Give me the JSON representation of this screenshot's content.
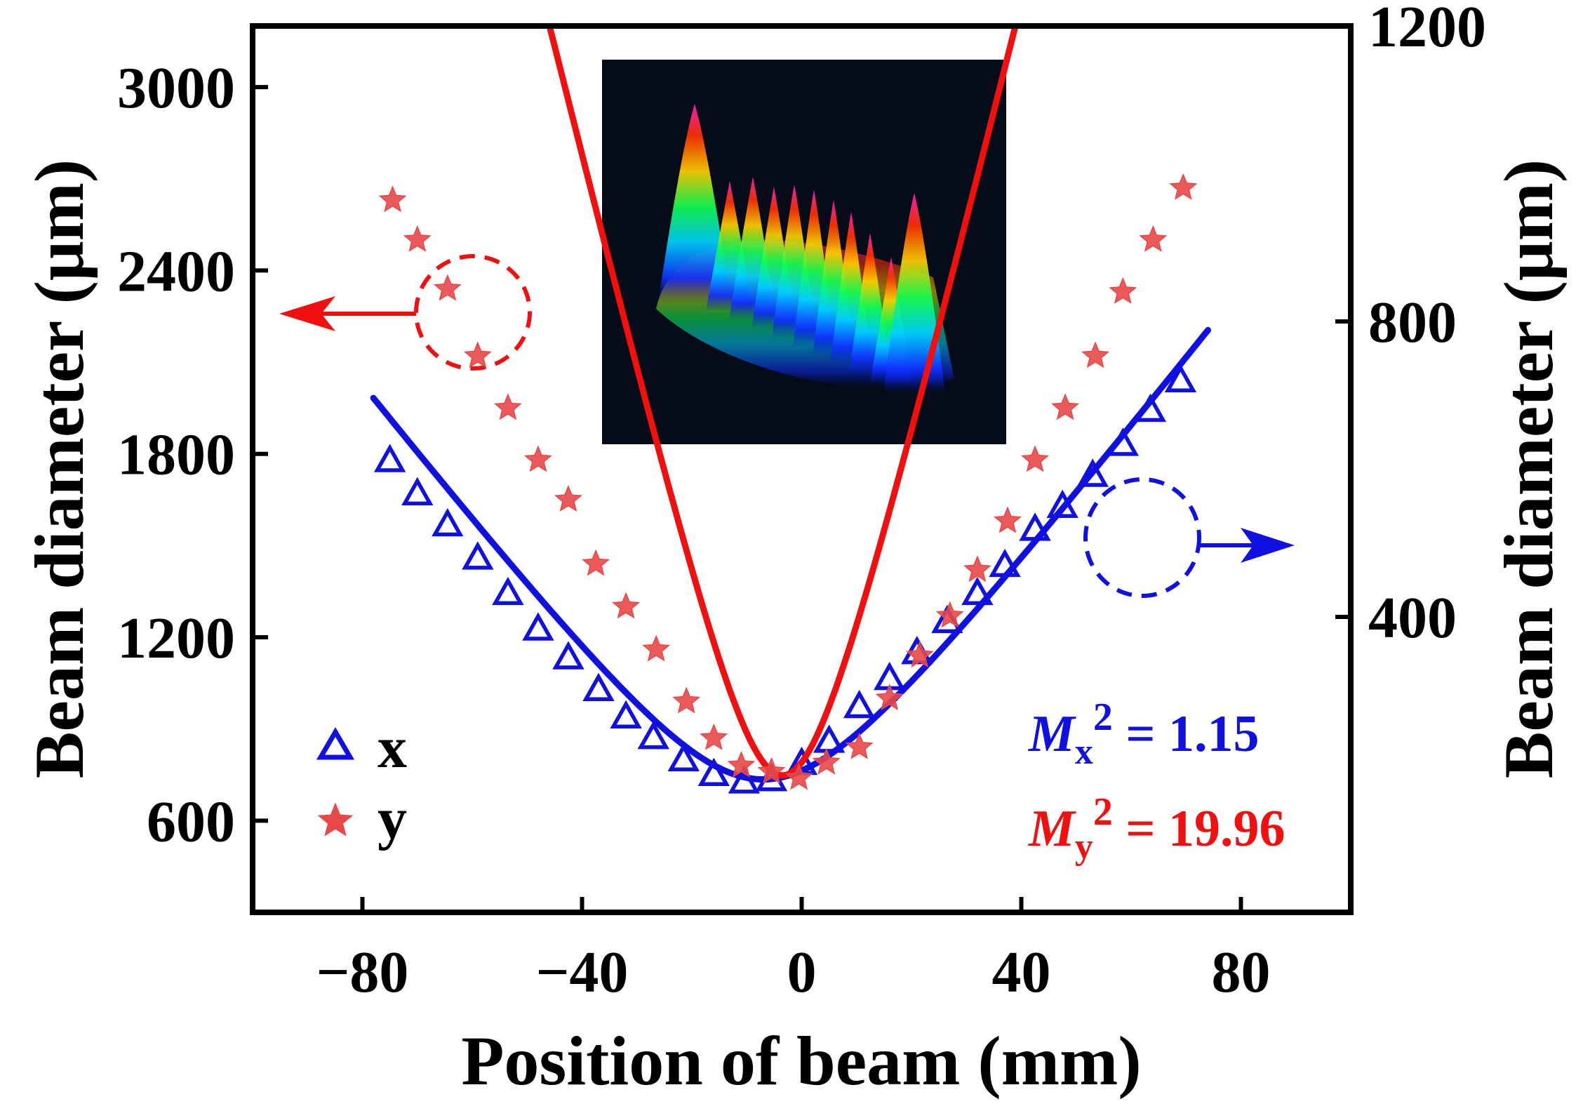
{
  "chart_data": {
    "type": "line",
    "xlabel": "Position of beam (mm)",
    "ylabel_left": "Beam diameter (μm)",
    "ylabel_right": "Beam diameter (μm)",
    "xlim": [
      -100,
      100
    ],
    "ylim_left": [
      300,
      3200
    ],
    "ylim_right": [
      0,
      1200
    ],
    "x_ticks": [
      -80,
      -40,
      0,
      40,
      80
    ],
    "x_tick_labels": [
      "−80",
      "−40",
      "0",
      "40",
      "80"
    ],
    "y_left_ticks": [
      600,
      1200,
      1800,
      2400,
      3000
    ],
    "y_left_tick_labels": [
      "600",
      "1200",
      "1800",
      "2400",
      "3000"
    ],
    "y_right_ticks": [
      400,
      800,
      1200
    ],
    "y_right_tick_labels": [
      "400",
      "800",
      "1200"
    ],
    "legend": {
      "position": "bottom-left",
      "entries": [
        "x",
        "y"
      ]
    },
    "colors": {
      "x": "#1010e0",
      "y": "#f01010"
    },
    "annotations": {
      "mx": {
        "symbol": "M",
        "subscript": "x",
        "superscript": "2",
        "value": " = 1.15",
        "color": "#1010e0"
      },
      "my": {
        "symbol": "M",
        "subscript": "y",
        "superscript": "2",
        "value": " = 19.96",
        "color": "#f01010"
      }
    },
    "series": [
      {
        "name": "x",
        "axis": "right",
        "marker": "triangle",
        "color": "#1010e0",
        "x": [
          -75,
          -70,
          -64.5,
          -59,
          -53.5,
          -48,
          -42.5,
          -37,
          -32,
          -27,
          -21.5,
          -16,
          -10.5,
          -5.5,
          0,
          5,
          10.5,
          16,
          21,
          26.5,
          32,
          37,
          42.5,
          47.5,
          53,
          58.5,
          63.5,
          69
        ],
        "values": [
          610,
          565,
          523,
          478,
          430,
          382,
          343,
          300,
          263,
          235,
          205,
          185,
          175,
          178,
          200,
          230,
          277,
          315,
          350,
          392,
          430,
          468,
          517,
          548,
          590,
          632,
          678,
          718
        ],
        "fit": {
          "x_min": -78,
          "x_max": 74,
          "waist": 180,
          "z0": -7,
          "zR": 19
        }
      },
      {
        "name": "y",
        "axis": "left",
        "marker": "star",
        "color": "#f01010",
        "x": [
          -74.5,
          -70,
          -64.5,
          -59,
          -53.5,
          -48,
          -42.5,
          -37.5,
          -32,
          -26.5,
          -21,
          -16,
          -11,
          -5.5,
          -0.5,
          4.5,
          10.5,
          16,
          21.5,
          27,
          32,
          37.5,
          42.5,
          48,
          53.5,
          58.5,
          64,
          69.5
        ],
        "values": [
          2630,
          2500,
          2340,
          2120,
          1950,
          1780,
          1650,
          1440,
          1300,
          1160,
          990,
          870,
          780,
          760,
          740,
          790,
          840,
          1000,
          1140,
          1270,
          1420,
          1580,
          1780,
          1950,
          2120,
          2330,
          2500,
          2670
        ],
        "fit": {
          "x_min": -78,
          "x_max": 74,
          "waist": 748,
          "z0": -3.5,
          "zR": 10.2
        }
      }
    ]
  }
}
